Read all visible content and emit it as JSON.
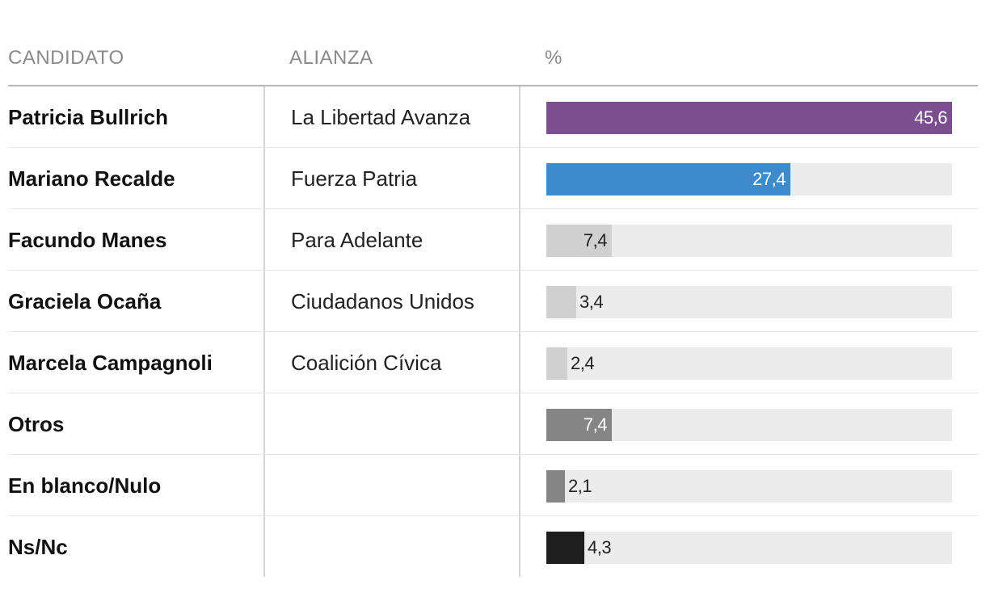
{
  "header": {
    "candidate": "CANDIDATO",
    "alliance": "ALIANZA",
    "percent": "%"
  },
  "chart_data": {
    "type": "bar",
    "orientation": "horizontal",
    "title": "",
    "xlim": [
      0,
      45.6
    ],
    "columns": [
      "CANDIDATO",
      "ALIANZA",
      "%"
    ],
    "rows": [
      {
        "name": "Patricia Bullrich",
        "alliance": "La Libertad Avanza",
        "value": 45.6,
        "label": "45,6",
        "color": "#7b4f8e",
        "label_color": "#ffffff",
        "label_inside": true
      },
      {
        "name": "Mariano Recalde",
        "alliance": "Fuerza Patria",
        "value": 27.4,
        "label": "27,4",
        "color": "#3d8bcb",
        "label_color": "#ffffff",
        "label_inside": true
      },
      {
        "name": "Facundo Manes",
        "alliance": "Para Adelante",
        "value": 7.4,
        "label": "7,4",
        "color": "#d0d0d0",
        "label_color": "#222222",
        "label_inside": true
      },
      {
        "name": "Graciela Ocaña",
        "alliance": "Ciudadanos Unidos",
        "value": 3.4,
        "label": "3,4",
        "color": "#d0d0d0",
        "label_color": "#222222",
        "label_inside": false
      },
      {
        "name": "Marcela Campagnoli",
        "alliance": "Coalición Cívica",
        "value": 2.4,
        "label": "2,4",
        "color": "#d0d0d0",
        "label_color": "#222222",
        "label_inside": false
      },
      {
        "name": "Otros",
        "alliance": "",
        "value": 7.4,
        "label": "7,4",
        "color": "#858585",
        "label_color": "#ffffff",
        "label_inside": true
      },
      {
        "name": "En blanco/Nulo",
        "alliance": "",
        "value": 2.1,
        "label": "2,1",
        "color": "#858585",
        "label_color": "#222222",
        "label_inside": false
      },
      {
        "name": "Ns/Nc",
        "alliance": "",
        "value": 4.3,
        "label": "4,3",
        "color": "#1e1e1e",
        "label_color": "#222222",
        "label_inside": false
      }
    ]
  }
}
